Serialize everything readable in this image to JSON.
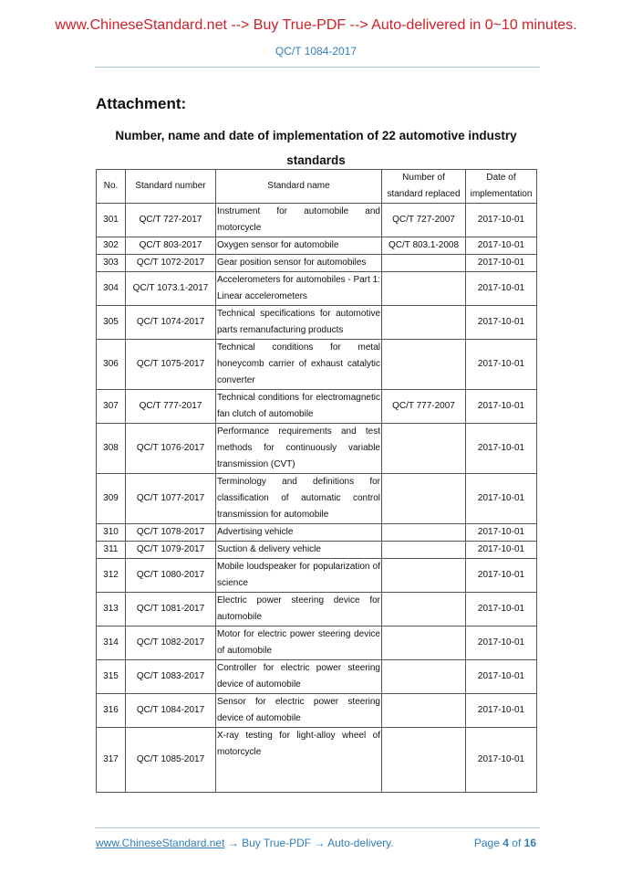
{
  "banner": "www.ChineseStandard.net --> Buy True-PDF --> Auto-delivered in 0~10 minutes.",
  "doc_code": "QC/T 1084-2017",
  "attachment": "Attachment:",
  "title": "Number, name and date of implementation of 22 automotive industry standards",
  "table": {
    "headers": [
      "No.",
      "Standard number",
      "Standard name",
      "Number of standard replaced",
      "Date of implementation"
    ],
    "rows": [
      [
        "301",
        "QC/T 727-2017",
        "Instrument for automobile and motorcycle",
        "QC/T 727-2007",
        "2017-10-01"
      ],
      [
        "302",
        "QC/T 803-2017",
        "Oxygen sensor for automobile",
        "QC/T 803.1-2008",
        "2017-10-01"
      ],
      [
        "303",
        "QC/T 1072-2017",
        "Gear position sensor for automobiles",
        "",
        "2017-10-01"
      ],
      [
        "304",
        "QC/T 1073.1-2017",
        "Accelerometers for automobiles - Part 1: Linear accelerometers",
        "",
        "2017-10-01"
      ],
      [
        "305",
        "QC/T 1074-2017",
        "Technical specifications for automotive parts remanufacturing products",
        "",
        "2017-10-01"
      ],
      [
        "306",
        "QC/T 1075-2017",
        "Technical conditions for metal honeycomb carrier of exhaust catalytic converter",
        "",
        "2017-10-01"
      ],
      [
        "307",
        "QC/T 777-2017",
        "Technical conditions for electromagnetic fan clutch of automobile",
        "QC/T 777-2007",
        "2017-10-01"
      ],
      [
        "308",
        "QC/T 1076-2017",
        "Performance requirements and test methods for continuously variable transmission (CVT)",
        "",
        "2017-10-01"
      ],
      [
        "309",
        "QC/T 1077-2017",
        "Terminology and definitions for classification of automatic control transmission for automobile",
        "",
        "2017-10-01"
      ],
      [
        "310",
        "QC/T 1078-2017",
        "Advertising vehicle",
        "",
        "2017-10-01"
      ],
      [
        "311",
        "QC/T 1079-2017",
        "Suction & delivery vehicle",
        "",
        "2017-10-01"
      ],
      [
        "312",
        "QC/T 1080-2017",
        "Mobile loudspeaker for popularization of science",
        "",
        "2017-10-01"
      ],
      [
        "313",
        "QC/T 1081-2017",
        "Electric power steering device for automobile",
        "",
        "2017-10-01"
      ],
      [
        "314",
        "QC/T 1082-2017",
        "Motor for electric power steering device of automobile",
        "",
        "2017-10-01"
      ],
      [
        "315",
        "QC/T 1083-2017",
        "Controller for electric power steering device of automobile",
        "",
        "2017-10-01"
      ],
      [
        "316",
        "QC/T 1084-2017",
        "Sensor for electric power steering device of automobile",
        "",
        "2017-10-01"
      ],
      [
        "317",
        "QC/T 1085-2017",
        "X-ray testing for light-alloy wheel of motorcycle",
        "",
        "2017-10-01"
      ]
    ]
  },
  "footer": {
    "link": "www.ChineseStandard.net",
    "text": " → Buy True-PDF → Auto-delivery.",
    "page_label": "Page",
    "page": "4",
    "of_label": "of",
    "total": "16"
  }
}
